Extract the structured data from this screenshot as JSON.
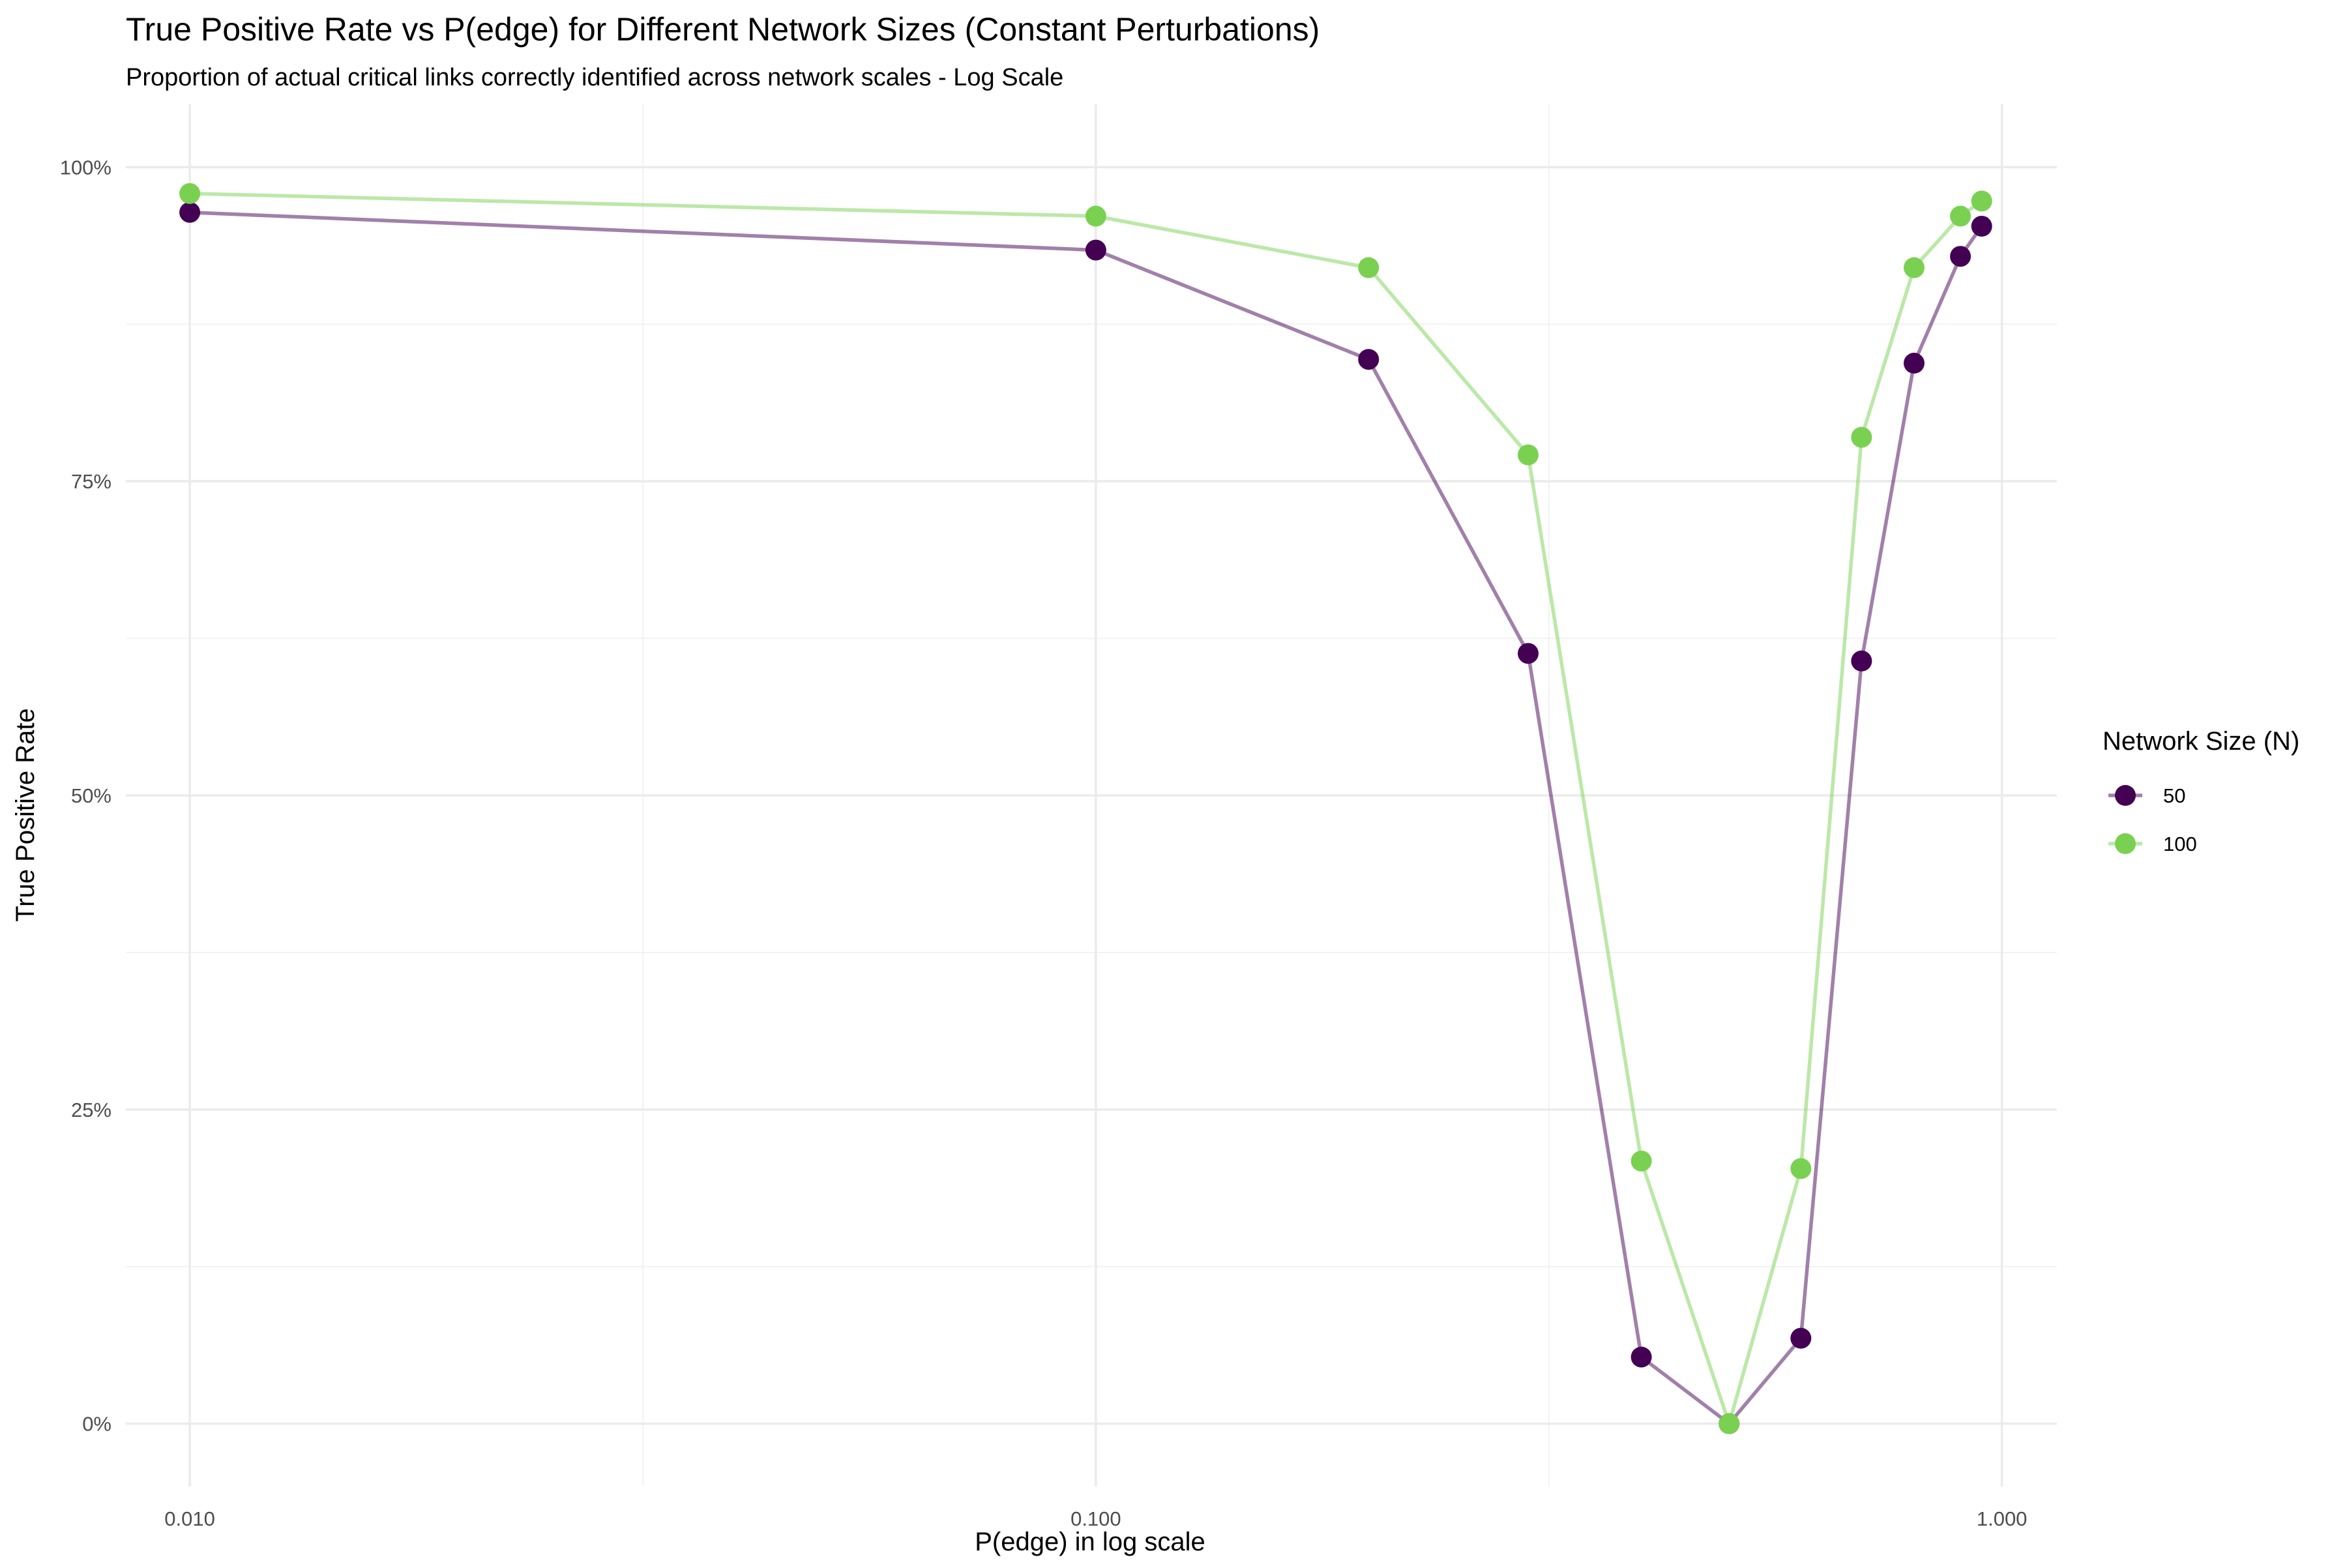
{
  "chart_data": {
    "type": "line",
    "title": "True Positive Rate vs P(edge) for Different Network Sizes (Constant Perturbations)",
    "subtitle": "Proportion of actual critical links correctly identified across network scales - Log Scale",
    "xlabel": "P(edge) in log scale",
    "ylabel": "True Positive Rate",
    "x_scale": "log",
    "xlim": [
      0.0085,
      1.15
    ],
    "ylim": [
      -0.05,
      1.05
    ],
    "x_ticks": [
      0.01,
      0.1,
      1.0
    ],
    "x_tick_labels": [
      "0.010",
      "0.100",
      "1.000"
    ],
    "y_ticks": [
      0,
      0.25,
      0.5,
      0.75,
      1.0
    ],
    "y_tick_labels": [
      "0%",
      "25%",
      "50%",
      "75%",
      "100%"
    ],
    "grid": true,
    "legend": {
      "title": "Network Size (N)",
      "position": "right"
    },
    "series": [
      {
        "name": "50",
        "color": "#440154",
        "x": [
          0.01,
          0.1,
          0.2,
          0.3,
          0.4,
          0.5,
          0.6,
          0.7,
          0.8,
          0.9,
          0.95
        ],
        "y": [
          0.964,
          0.934,
          0.847,
          0.613,
          0.053,
          0.0,
          0.068,
          0.607,
          0.844,
          0.929,
          0.953
        ]
      },
      {
        "name": "100",
        "color": "#7AD151",
        "x": [
          0.01,
          0.1,
          0.2,
          0.3,
          0.4,
          0.5,
          0.6,
          0.7,
          0.8,
          0.9,
          0.95
        ],
        "y": [
          0.979,
          0.961,
          0.92,
          0.771,
          0.209,
          0.0,
          0.203,
          0.785,
          0.92,
          0.961,
          0.973
        ]
      }
    ]
  }
}
